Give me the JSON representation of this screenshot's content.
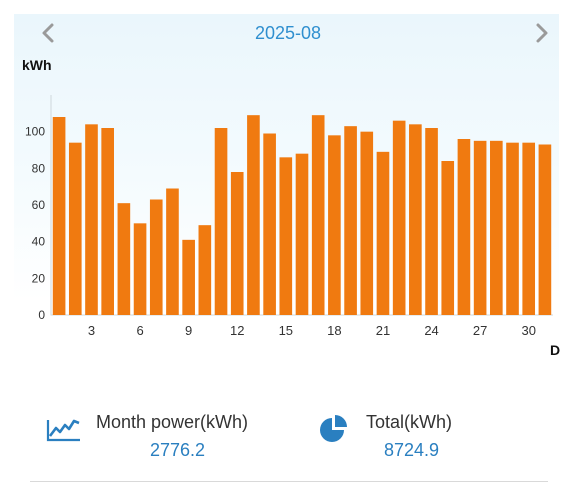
{
  "header": {
    "month": "2025-08",
    "prev_icon": "chevron-left-icon",
    "next_icon": "chevron-right-icon"
  },
  "chart_data": {
    "type": "bar",
    "ylabel": "kWh",
    "xlabel": "D",
    "ylim": [
      0,
      120
    ],
    "yticks": [
      0,
      20,
      40,
      60,
      80,
      100
    ],
    "xticks": [
      3,
      6,
      9,
      12,
      15,
      18,
      21,
      24,
      27,
      30
    ],
    "categories": [
      1,
      2,
      3,
      4,
      5,
      6,
      7,
      8,
      9,
      10,
      11,
      12,
      13,
      14,
      15,
      16,
      17,
      18,
      19,
      20,
      21,
      22,
      23,
      24,
      25,
      26,
      27,
      28,
      29,
      30,
      31
    ],
    "values": [
      108,
      94,
      104,
      102,
      61,
      50,
      63,
      69,
      41,
      49,
      102,
      78,
      109,
      99,
      86,
      88,
      109,
      98,
      103,
      100,
      89,
      106,
      104,
      102,
      84,
      96,
      95,
      95,
      94,
      94,
      93
    ],
    "bar_color": "#f07a10",
    "grid": false
  },
  "summary": {
    "month_power": {
      "label": "Month power(kWh)",
      "value": "2776.2",
      "icon": "trend-line-icon"
    },
    "total": {
      "label": "Total(kWh)",
      "value": "8724.9",
      "icon": "pie-chart-icon"
    }
  },
  "colors": {
    "accent": "#2f8fcf",
    "bar": "#f07a10",
    "value_text": "#2a7fc0"
  }
}
